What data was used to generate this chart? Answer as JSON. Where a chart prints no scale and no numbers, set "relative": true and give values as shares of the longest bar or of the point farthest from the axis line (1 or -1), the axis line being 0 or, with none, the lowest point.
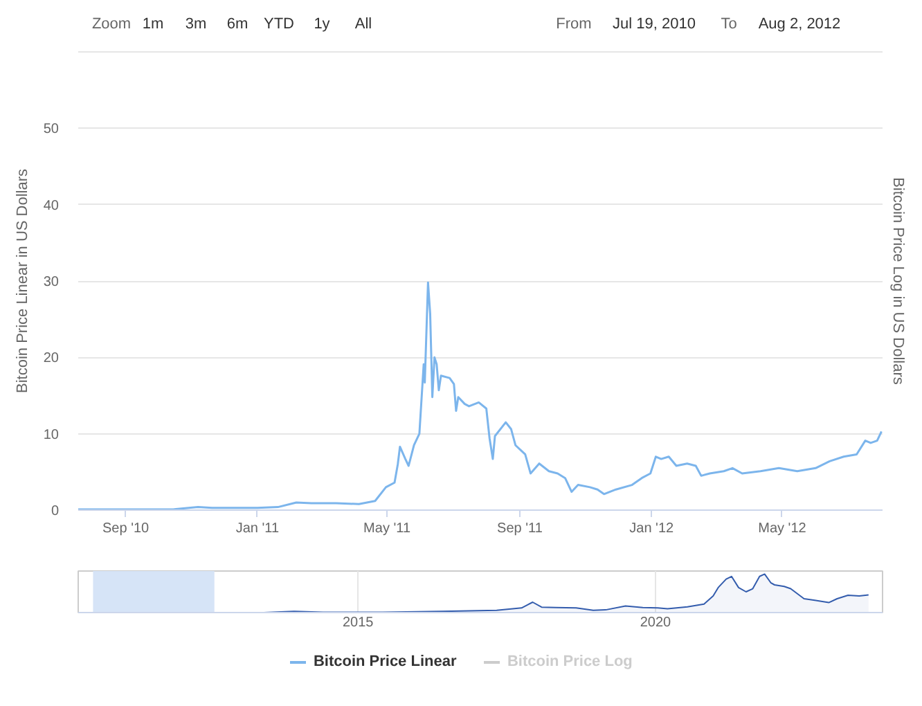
{
  "chart_data": [
    {
      "type": "line",
      "ylabel": "Bitcoin Price Linear in US Dollars",
      "y2label": "Bitcoin Price Log in US Dollars",
      "annotations": [
        "Zoom",
        "1m",
        "3m",
        "6m",
        "YTD",
        "1y",
        "All",
        "From",
        "Jul 19, 2010",
        "To",
        "Aug 2, 2012"
      ],
      "x": [
        "2010-07-19",
        "2010-08-15",
        "2010-09-15",
        "2010-10-15",
        "2010-11-07",
        "2010-11-20",
        "2010-12-15",
        "2011-01-01",
        "2011-01-20",
        "2011-02-06",
        "2011-02-20",
        "2011-03-15",
        "2011-04-05",
        "2011-04-20",
        "2011-04-30",
        "2011-05-08",
        "2011-05-11",
        "2011-05-13",
        "2011-05-18",
        "2011-05-21",
        "2011-05-26",
        "2011-05-31",
        "2011-06-04",
        "2011-06-05",
        "2011-06-08",
        "2011-06-10",
        "2011-06-12",
        "2011-06-14",
        "2011-06-16",
        "2011-06-18",
        "2011-06-20",
        "2011-06-28",
        "2011-07-02",
        "2011-07-04",
        "2011-07-06",
        "2011-07-12",
        "2011-07-16",
        "2011-07-25",
        "2011-08-01",
        "2011-08-04",
        "2011-08-07",
        "2011-08-09",
        "2011-08-19",
        "2011-08-24",
        "2011-08-28",
        "2011-09-06",
        "2011-09-11",
        "2011-09-19",
        "2011-09-28",
        "2011-10-06",
        "2011-10-13",
        "2011-10-19",
        "2011-10-25",
        "2011-11-05",
        "2011-11-12",
        "2011-11-18",
        "2011-11-29",
        "2011-12-14",
        "2011-12-23",
        "2011-12-31",
        "2012-01-05",
        "2012-01-10",
        "2012-01-17",
        "2012-01-24",
        "2012-02-03",
        "2012-02-11",
        "2012-02-16",
        "2012-02-24",
        "2012-03-08",
        "2012-03-16",
        "2012-03-25",
        "2012-04-11",
        "2012-04-28",
        "2012-05-15",
        "2012-06-01",
        "2012-06-14",
        "2012-06-27",
        "2012-07-09",
        "2012-07-17",
        "2012-07-22",
        "2012-07-28",
        "2012-08-01"
      ],
      "series": [
        {
          "name": "Bitcoin Price Linear",
          "color": "#7cb5ec",
          "values": [
            0.1,
            0.1,
            0.1,
            0.1,
            0.4,
            0.3,
            0.3,
            0.3,
            0.4,
            1.0,
            0.9,
            0.9,
            0.8,
            1.2,
            3.0,
            3.6,
            6.0,
            8.3,
            6.7,
            5.8,
            8.5,
            10.0,
            19.1,
            16.7,
            29.8,
            25.7,
            14.8,
            20.0,
            19.1,
            15.7,
            17.6,
            17.3,
            16.5,
            13.0,
            14.8,
            13.9,
            13.6,
            14.1,
            13.3,
            9.4,
            6.7,
            9.7,
            11.5,
            10.6,
            8.5,
            7.3,
            4.8,
            6.1,
            5.1,
            4.8,
            4.2,
            2.4,
            3.3,
            3.0,
            2.7,
            2.1,
            2.7,
            3.3,
            4.2,
            4.8,
            7.0,
            6.7,
            7.0,
            5.8,
            6.1,
            5.8,
            4.5,
            4.8,
            5.1,
            5.5,
            4.8,
            5.1,
            5.5,
            5.1,
            5.5,
            6.4,
            7.0,
            7.3,
            9.1,
            8.8,
            9.1,
            10.3
          ]
        },
        {
          "name": "Bitcoin Price Log",
          "color": "#cccccc",
          "axis": "y2",
          "values": [
            null,
            null,
            null,
            null,
            null,
            null,
            null,
            null,
            null,
            null,
            null,
            null,
            null,
            null,
            null,
            null,
            null,
            null,
            null,
            null,
            null,
            null,
            null,
            null,
            null,
            null,
            null,
            null,
            null,
            null,
            null,
            null,
            null,
            null,
            null,
            null,
            null,
            null,
            null,
            null,
            null,
            null,
            null,
            null,
            null,
            null,
            null,
            null,
            null,
            null,
            null,
            null,
            null,
            null,
            null,
            null,
            null,
            null,
            null,
            null,
            null,
            null,
            null,
            null,
            null,
            null,
            null,
            null,
            null,
            null,
            null,
            null,
            null,
            null,
            null,
            null,
            null,
            null,
            null,
            null,
            null,
            null
          ]
        }
      ],
      "xlim": [
        "2010-07-19",
        "2012-08-02"
      ],
      "xticks": [
        {
          "value": "2010-09-01",
          "label": "Sep '10"
        },
        {
          "value": "2011-01-01",
          "label": "Jan '11"
        },
        {
          "value": "2011-05-01",
          "label": "May '11"
        },
        {
          "value": "2011-09-01",
          "label": "Sep '11"
        },
        {
          "value": "2012-01-01",
          "label": "Jan '12"
        },
        {
          "value": "2012-05-01",
          "label": "May '12"
        }
      ],
      "ylim": [
        0,
        60
      ],
      "yticks": [
        0,
        10,
        20,
        30,
        40,
        50
      ],
      "grid": "y",
      "legend": "bottom"
    },
    {
      "type": "area",
      "relative": true,
      "color": "#335cad",
      "x": [
        "2010-07-19",
        "2013-06-01",
        "2013-12-04",
        "2014-06-01",
        "2015-06-01",
        "2016-06-01",
        "2017-05-01",
        "2017-10-01",
        "2017-12-08",
        "2018-02-01",
        "2018-05-01",
        "2018-09-01",
        "2018-12-15",
        "2019-03-01",
        "2019-07-01",
        "2019-10-15",
        "2020-01-15",
        "2020-03-15",
        "2020-07-15",
        "2020-10-25",
        "2020-12-20",
        "2021-01-20",
        "2021-03-10",
        "2021-04-12",
        "2021-05-25",
        "2021-07-10",
        "2021-08-20",
        "2021-10-01",
        "2021-11-01",
        "2021-12-10",
        "2022-01-01",
        "2022-03-01",
        "2022-04-10",
        "2022-07-01",
        "2022-09-05",
        "2022-11-30",
        "2023-01-20",
        "2023-03-28",
        "2023-06-05",
        "2023-08-01"
      ],
      "values": [
        0,
        0,
        0.03,
        0.01,
        0.01,
        0.03,
        0.06,
        0.12,
        0.27,
        0.14,
        0.13,
        0.12,
        0.06,
        0.07,
        0.17,
        0.13,
        0.12,
        0.1,
        0.15,
        0.22,
        0.43,
        0.65,
        0.87,
        0.94,
        0.65,
        0.54,
        0.62,
        0.94,
        1,
        0.77,
        0.72,
        0.68,
        0.62,
        0.36,
        0.32,
        0.26,
        0.36,
        0.45,
        0.43,
        0.46
      ],
      "xlim": [
        "2010-04-19",
        "2023-10-26"
      ],
      "xticks": [
        "2015",
        "2020"
      ],
      "grid": "x",
      "bands": [
        {
          "axis": "x",
          "from": "2010-07-19",
          "to": "2012-08-02",
          "color": "#d6e4f7"
        }
      ]
    }
  ]
}
